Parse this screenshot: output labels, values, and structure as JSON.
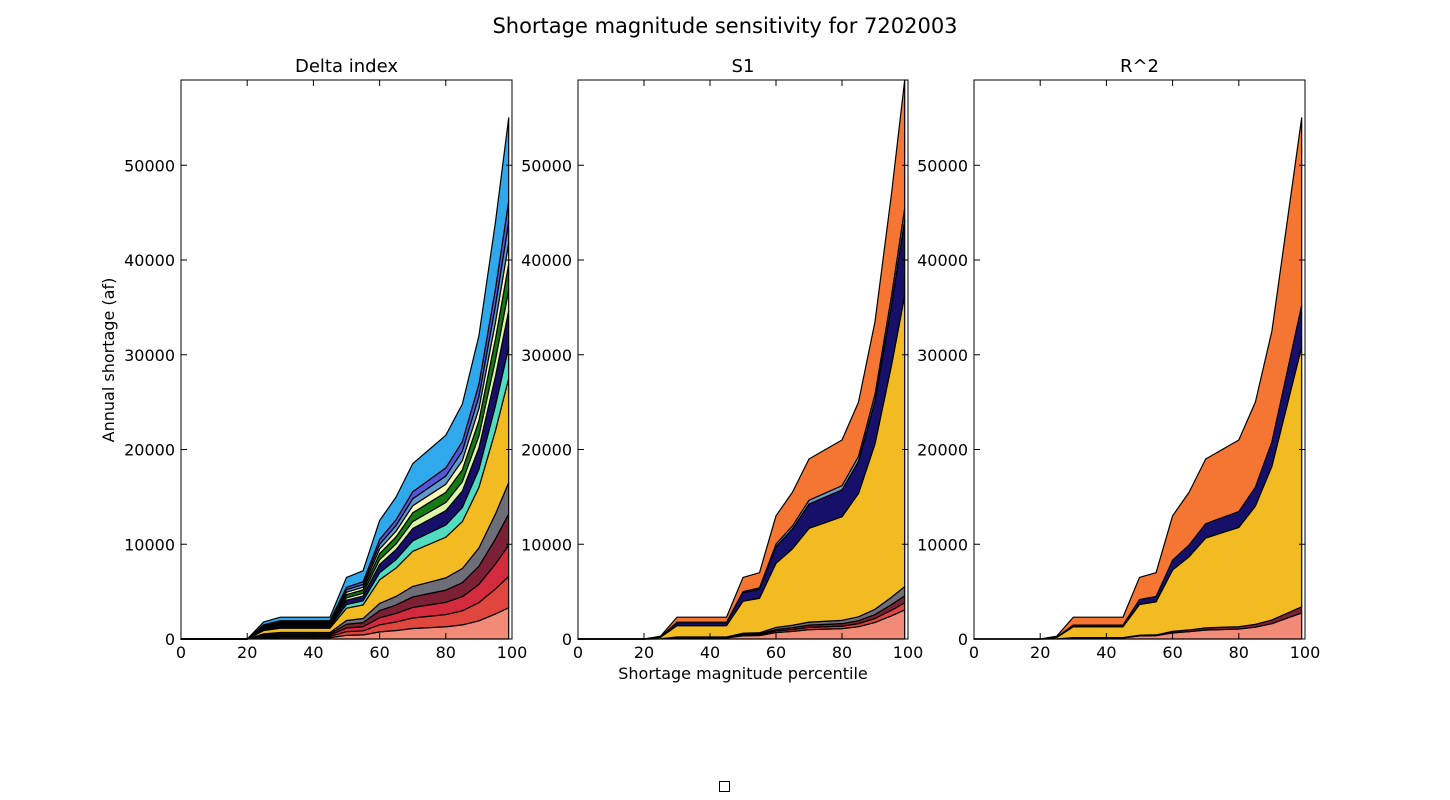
{
  "figure": {
    "suptitle": "Shortage magnitude sensitivity for 7202003",
    "ylabel": "Annual shortage (af)",
    "xlabel": "Shortage magnitude percentile"
  },
  "chart_data": [
    {
      "type": "area",
      "title": "Delta index",
      "xlabel": "",
      "ylabel": "Annual shortage (af)",
      "xlim": [
        0,
        100
      ],
      "ylim": [
        0,
        59000
      ],
      "xticks": [
        "0",
        "20",
        "40",
        "60",
        "80",
        "100"
      ],
      "yticks": [
        "0",
        "10000",
        "20000",
        "30000",
        "40000",
        "50000"
      ],
      "x": [
        0,
        5,
        10,
        15,
        20,
        25,
        30,
        35,
        40,
        45,
        50,
        55,
        60,
        65,
        70,
        75,
        80,
        85,
        90,
        95,
        99
      ],
      "total": [
        0,
        0,
        0,
        0,
        0,
        1800,
        2300,
        2300,
        2300,
        2300,
        6500,
        7200,
        12500,
        15000,
        18500,
        20000,
        21500,
        24800,
        32000,
        44000,
        55000
      ],
      "series_colors": [
        "#f28a78",
        "#e0463d",
        "#d42a3e",
        "#7c2035",
        "#6e6e78",
        "#f2bb22",
        "#50dcc0",
        "#17106a",
        "#daf6a6",
        "#137b13",
        "#f7f9b5",
        "#5e9ad0",
        "#5656dc",
        "#2fa9ec"
      ],
      "series_weights": [
        6,
        6,
        6,
        6,
        6,
        20,
        6,
        7,
        4,
        5,
        4,
        4,
        4,
        16
      ]
    },
    {
      "type": "area",
      "title": "S1",
      "xlabel": "Shortage magnitude percentile",
      "ylabel": "",
      "xlim": [
        0,
        100
      ],
      "ylim": [
        0,
        59000
      ],
      "xticks": [
        "0",
        "20",
        "40",
        "60",
        "80",
        "100"
      ],
      "yticks": [
        "0",
        "10000",
        "20000",
        "30000",
        "40000",
        "50000"
      ],
      "x": [
        0,
        5,
        10,
        15,
        20,
        25,
        30,
        35,
        40,
        45,
        50,
        55,
        60,
        65,
        70,
        75,
        80,
        85,
        90,
        95,
        99
      ],
      "total": [
        0,
        0,
        0,
        0,
        0,
        300,
        2300,
        2300,
        2300,
        2300,
        6500,
        7000,
        13000,
        15500,
        19000,
        20000,
        21000,
        25000,
        33500,
        47000,
        59000
      ],
      "series_colors": [
        "#f28a78",
        "#e0463d",
        "#7c2035",
        "#6e6e78",
        "#f2bb22",
        "#17106a",
        "#6e9ec2",
        "#f47632"
      ],
      "series_weights": [
        5,
        1.2,
        1.2,
        1.6,
        50,
        13,
        2,
        22
      ]
    },
    {
      "type": "area",
      "title": "R^2",
      "xlabel": "",
      "ylabel": "",
      "xlim": [
        0,
        100
      ],
      "ylim": [
        0,
        59000
      ],
      "xticks": [
        "0",
        "20",
        "40",
        "60",
        "80",
        "100"
      ],
      "yticks": [
        "0",
        "10000",
        "20000",
        "30000",
        "40000",
        "50000"
      ],
      "x": [
        0,
        5,
        10,
        15,
        20,
        25,
        30,
        35,
        40,
        45,
        50,
        55,
        60,
        65,
        70,
        75,
        80,
        85,
        90,
        95,
        99
      ],
      "total": [
        0,
        0,
        0,
        0,
        0,
        300,
        2300,
        2300,
        2300,
        2300,
        6500,
        7000,
        13000,
        15500,
        19000,
        20000,
        21000,
        25000,
        32500,
        45000,
        55000
      ],
      "series_colors": [
        "#f28a78",
        "#7c2035",
        "#f2bb22",
        "#17106a",
        "#f47632"
      ],
      "series_weights": [
        5,
        1.2,
        50,
        8,
        36
      ]
    }
  ]
}
